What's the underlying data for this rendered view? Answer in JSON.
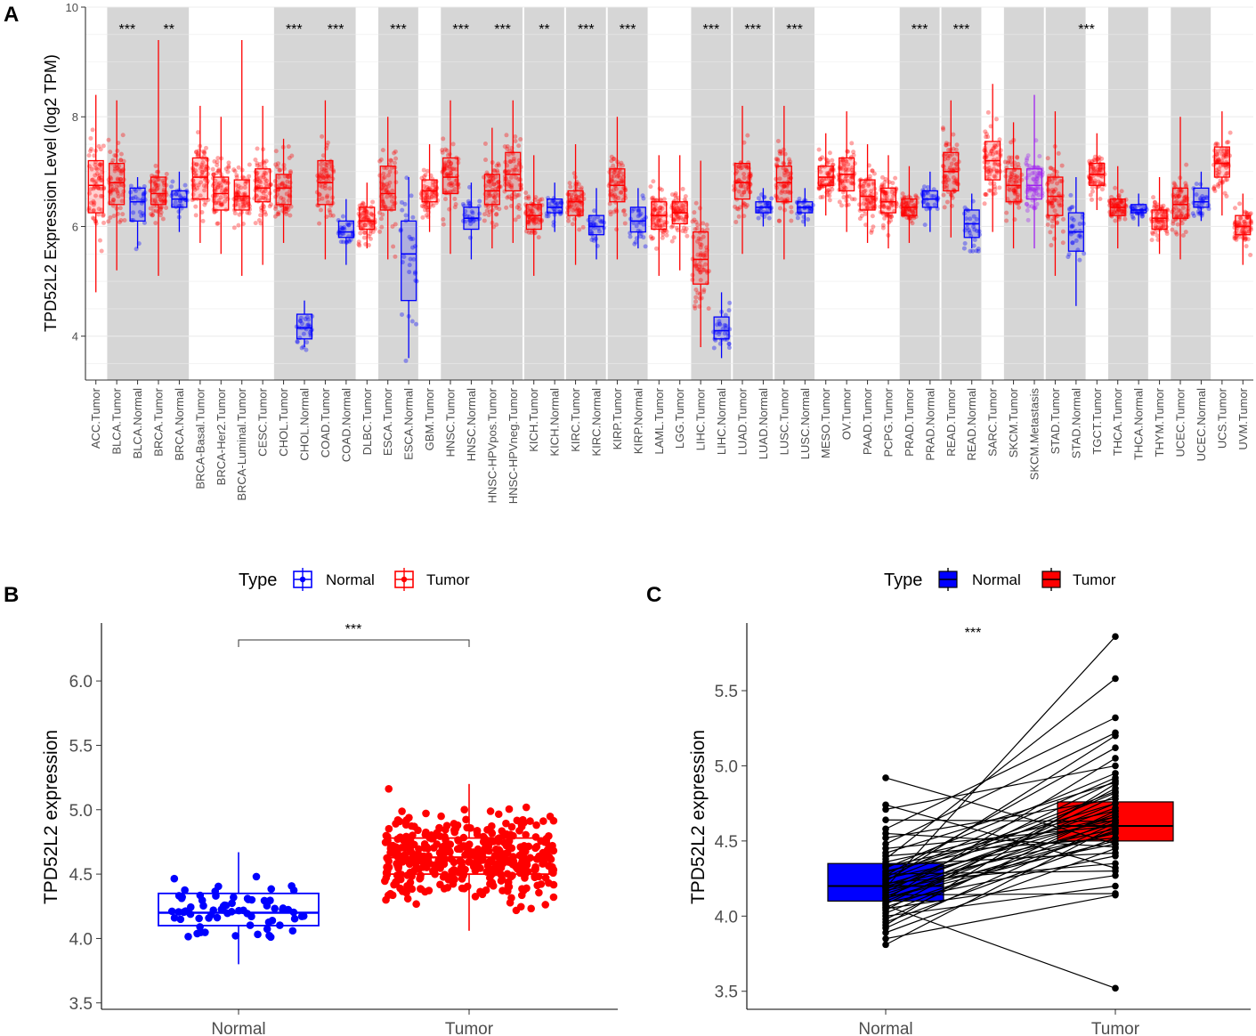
{
  "panels": {
    "a": {
      "letter": "A"
    },
    "b": {
      "letter": "B"
    },
    "c": {
      "letter": "C"
    }
  },
  "chart_data": [
    {
      "id": "A",
      "type": "boxplot",
      "ylabel": "TPD52L2 Expression Level (log2 TPM)",
      "ylim": [
        3.2,
        10
      ],
      "yticks": [
        4,
        6,
        8,
        10
      ],
      "colors": {
        "Tumor": "#ff0000",
        "Normal": "#0000ff",
        "Metastasis": "#a020f0"
      },
      "categories": [
        {
          "label": "ACC.Tumor",
          "type": "Tumor",
          "q1": 6.25,
          "med": 6.75,
          "q3": 7.2,
          "lo": 4.8,
          "hi": 8.4
        },
        {
          "label": "BLCA.Tumor",
          "type": "Tumor",
          "q1": 6.4,
          "med": 6.8,
          "q3": 7.15,
          "lo": 5.2,
          "hi": 8.3
        },
        {
          "label": "BLCA.Normal",
          "type": "Normal",
          "q1": 6.1,
          "med": 6.45,
          "q3": 6.7,
          "lo": 5.6,
          "hi": 6.9
        },
        {
          "label": "BRCA.Tumor",
          "type": "Tumor",
          "q1": 6.4,
          "med": 6.6,
          "q3": 6.9,
          "lo": 5.1,
          "hi": 9.4
        },
        {
          "label": "BRCA.Normal",
          "type": "Normal",
          "q1": 6.35,
          "med": 6.5,
          "q3": 6.65,
          "lo": 5.9,
          "hi": 7.0
        },
        {
          "label": "BRCA-Basal.Tumor",
          "type": "Tumor",
          "q1": 6.5,
          "med": 6.9,
          "q3": 7.25,
          "lo": 5.7,
          "hi": 8.2
        },
        {
          "label": "BRCA-Her2.Tumor",
          "type": "Tumor",
          "q1": 6.3,
          "med": 6.6,
          "q3": 6.9,
          "lo": 5.5,
          "hi": 8.0
        },
        {
          "label": "BRCA-Luminal.Tumor",
          "type": "Tumor",
          "q1": 6.3,
          "med": 6.55,
          "q3": 6.85,
          "lo": 5.1,
          "hi": 9.4
        },
        {
          "label": "CESC.Tumor",
          "type": "Tumor",
          "q1": 6.45,
          "med": 6.7,
          "q3": 7.05,
          "lo": 5.3,
          "hi": 8.2
        },
        {
          "label": "CHOL.Tumor",
          "type": "Tumor",
          "q1": 6.4,
          "med": 6.7,
          "q3": 6.95,
          "lo": 5.7,
          "hi": 7.6
        },
        {
          "label": "CHOL.Normal",
          "type": "Normal",
          "q1": 3.95,
          "med": 4.15,
          "q3": 4.4,
          "lo": 3.8,
          "hi": 4.65
        },
        {
          "label": "COAD.Tumor",
          "type": "Tumor",
          "q1": 6.4,
          "med": 6.8,
          "q3": 7.2,
          "lo": 5.4,
          "hi": 8.3
        },
        {
          "label": "COAD.Normal",
          "type": "Normal",
          "q1": 5.8,
          "med": 5.9,
          "q3": 6.1,
          "lo": 5.3,
          "hi": 6.5
        },
        {
          "label": "DLBC.Tumor",
          "type": "Tumor",
          "q1": 5.95,
          "med": 6.1,
          "q3": 6.35,
          "lo": 5.6,
          "hi": 6.8
        },
        {
          "label": "ESCA.Tumor",
          "type": "Tumor",
          "q1": 6.3,
          "med": 6.6,
          "q3": 7.1,
          "lo": 5.4,
          "hi": 8.0
        },
        {
          "label": "ESCA.Normal",
          "type": "Normal",
          "q1": 4.65,
          "med": 5.5,
          "q3": 6.1,
          "lo": 3.6,
          "hi": 6.9
        },
        {
          "label": "GBM.Tumor",
          "type": "Tumor",
          "q1": 6.45,
          "med": 6.65,
          "q3": 6.85,
          "lo": 5.9,
          "hi": 7.5
        },
        {
          "label": "HNSC.Tumor",
          "type": "Tumor",
          "q1": 6.6,
          "med": 6.9,
          "q3": 7.25,
          "lo": 5.5,
          "hi": 8.3
        },
        {
          "label": "HNSC.Normal",
          "type": "Normal",
          "q1": 5.95,
          "med": 6.15,
          "q3": 6.35,
          "lo": 5.4,
          "hi": 6.8
        },
        {
          "label": "HNSC-HPVpos.Tumor",
          "type": "Tumor",
          "q1": 6.4,
          "med": 6.65,
          "q3": 6.95,
          "lo": 5.6,
          "hi": 7.8
        },
        {
          "label": "HNSC-HPVneg.Tumor",
          "type": "Tumor",
          "q1": 6.65,
          "med": 6.95,
          "q3": 7.35,
          "lo": 5.7,
          "hi": 8.3
        },
        {
          "label": "KICH.Tumor",
          "type": "Tumor",
          "q1": 5.95,
          "med": 6.2,
          "q3": 6.4,
          "lo": 5.1,
          "hi": 7.3
        },
        {
          "label": "KICH.Normal",
          "type": "Normal",
          "q1": 6.25,
          "med": 6.35,
          "q3": 6.5,
          "lo": 5.9,
          "hi": 6.8
        },
        {
          "label": "KIRC.Tumor",
          "type": "Tumor",
          "q1": 6.2,
          "med": 6.45,
          "q3": 6.65,
          "lo": 5.3,
          "hi": 7.5
        },
        {
          "label": "KIRC.Normal",
          "type": "Normal",
          "q1": 5.85,
          "med": 6.0,
          "q3": 6.2,
          "lo": 5.4,
          "hi": 6.7
        },
        {
          "label": "KIRP.Tumor",
          "type": "Tumor",
          "q1": 6.45,
          "med": 6.75,
          "q3": 7.05,
          "lo": 5.4,
          "hi": 8.0
        },
        {
          "label": "KIRP.Normal",
          "type": "Normal",
          "q1": 5.9,
          "med": 6.1,
          "q3": 6.35,
          "lo": 5.6,
          "hi": 6.7
        },
        {
          "label": "LAML.Tumor",
          "type": "Tumor",
          "q1": 5.95,
          "med": 6.2,
          "q3": 6.45,
          "lo": 5.1,
          "hi": 7.3
        },
        {
          "label": "LGG.Tumor",
          "type": "Tumor",
          "q1": 6.05,
          "med": 6.25,
          "q3": 6.45,
          "lo": 5.2,
          "hi": 7.3
        },
        {
          "label": "LIHC.Tumor",
          "type": "Tumor",
          "q1": 4.95,
          "med": 5.4,
          "q3": 5.9,
          "lo": 3.8,
          "hi": 7.2
        },
        {
          "label": "LIHC.Normal",
          "type": "Normal",
          "q1": 3.95,
          "med": 4.1,
          "q3": 4.35,
          "lo": 3.6,
          "hi": 4.8
        },
        {
          "label": "LUAD.Tumor",
          "type": "Tumor",
          "q1": 6.5,
          "med": 6.8,
          "q3": 7.15,
          "lo": 5.5,
          "hi": 8.2
        },
        {
          "label": "LUAD.Normal",
          "type": "Normal",
          "q1": 6.25,
          "med": 6.35,
          "q3": 6.45,
          "lo": 6.0,
          "hi": 6.7
        },
        {
          "label": "LUSC.Tumor",
          "type": "Tumor",
          "q1": 6.45,
          "med": 6.8,
          "q3": 7.1,
          "lo": 5.4,
          "hi": 8.2
        },
        {
          "label": "LUSC.Normal",
          "type": "Normal",
          "q1": 6.25,
          "med": 6.35,
          "q3": 6.45,
          "lo": 6.0,
          "hi": 6.7
        },
        {
          "label": "MESO.Tumor",
          "type": "Tumor",
          "q1": 6.75,
          "med": 6.9,
          "q3": 7.1,
          "lo": 6.2,
          "hi": 7.7
        },
        {
          "label": "OV.Tumor",
          "type": "Tumor",
          "q1": 6.65,
          "med": 6.95,
          "q3": 7.25,
          "lo": 5.9,
          "hi": 8.1
        },
        {
          "label": "PAAD.Tumor",
          "type": "Tumor",
          "q1": 6.3,
          "med": 6.55,
          "q3": 6.85,
          "lo": 5.7,
          "hi": 7.5
        },
        {
          "label": "PCPG.Tumor",
          "type": "Tumor",
          "q1": 6.25,
          "med": 6.45,
          "q3": 6.7,
          "lo": 5.6,
          "hi": 7.3
        },
        {
          "label": "PRAD.Tumor",
          "type": "Tumor",
          "q1": 6.2,
          "med": 6.35,
          "q3": 6.5,
          "lo": 5.7,
          "hi": 7.1
        },
        {
          "label": "PRAD.Normal",
          "type": "Normal",
          "q1": 6.35,
          "med": 6.5,
          "q3": 6.65,
          "lo": 5.9,
          "hi": 7.0
        },
        {
          "label": "READ.Tumor",
          "type": "Tumor",
          "q1": 6.65,
          "med": 7.0,
          "q3": 7.35,
          "lo": 5.8,
          "hi": 8.3
        },
        {
          "label": "READ.Normal",
          "type": "Normal",
          "q1": 5.8,
          "med": 6.05,
          "q3": 6.3,
          "lo": 5.6,
          "hi": 6.6
        },
        {
          "label": "SARC.Tumor",
          "type": "Tumor",
          "q1": 6.85,
          "med": 7.2,
          "q3": 7.55,
          "lo": 5.9,
          "hi": 8.6
        },
        {
          "label": "SKCM.Tumor",
          "type": "Tumor",
          "q1": 6.45,
          "med": 6.75,
          "q3": 7.05,
          "lo": 5.6,
          "hi": 7.9
        },
        {
          "label": "SKCM.Metastasis",
          "type": "Metastasis",
          "q1": 6.5,
          "med": 6.75,
          "q3": 7.05,
          "lo": 5.6,
          "hi": 8.4
        },
        {
          "label": "STAD.Tumor",
          "type": "Tumor",
          "q1": 6.2,
          "med": 6.55,
          "q3": 6.9,
          "lo": 5.1,
          "hi": 8.1
        },
        {
          "label": "STAD.Normal",
          "type": "Normal",
          "q1": 5.55,
          "med": 5.9,
          "q3": 6.25,
          "lo": 4.55,
          "hi": 6.9
        },
        {
          "label": "TGCT.Tumor",
          "type": "Tumor",
          "q1": 6.75,
          "med": 6.95,
          "q3": 7.15,
          "lo": 6.3,
          "hi": 7.7
        },
        {
          "label": "THCA.Tumor",
          "type": "Tumor",
          "q1": 6.2,
          "med": 6.35,
          "q3": 6.5,
          "lo": 5.6,
          "hi": 7.1
        },
        {
          "label": "THCA.Normal",
          "type": "Normal",
          "q1": 6.25,
          "med": 6.3,
          "q3": 6.4,
          "lo": 6.0,
          "hi": 6.6
        },
        {
          "label": "THYM.Tumor",
          "type": "Tumor",
          "q1": 5.95,
          "med": 6.15,
          "q3": 6.3,
          "lo": 5.5,
          "hi": 6.9
        },
        {
          "label": "UCEC.Tumor",
          "type": "Tumor",
          "q1": 6.15,
          "med": 6.4,
          "q3": 6.7,
          "lo": 5.4,
          "hi": 8.0
        },
        {
          "label": "UCEC.Normal",
          "type": "Normal",
          "q1": 6.35,
          "med": 6.45,
          "q3": 6.7,
          "lo": 6.1,
          "hi": 7.0
        },
        {
          "label": "UCS.Tumor",
          "type": "Tumor",
          "q1": 6.9,
          "med": 7.15,
          "q3": 7.45,
          "lo": 6.2,
          "hi": 8.1
        },
        {
          "label": "UVM.Tumor",
          "type": "Tumor",
          "q1": 5.85,
          "med": 6.0,
          "q3": 6.2,
          "lo": 5.3,
          "hi": 6.6
        }
      ],
      "shaded_groups": [
        [
          1,
          4
        ],
        [
          9,
          12
        ],
        [
          14,
          15
        ],
        [
          17,
          20
        ],
        [
          21,
          22
        ],
        [
          23,
          24
        ],
        [
          25,
          26
        ],
        [
          29,
          30
        ],
        [
          31,
          32
        ],
        [
          33,
          34
        ],
        [
          39,
          40
        ],
        [
          41,
          42
        ],
        [
          44,
          45
        ],
        [
          46,
          47
        ],
        [
          49,
          50
        ],
        [
          52,
          53
        ]
      ],
      "significance": [
        {
          "pos": 1.5,
          "text": "***"
        },
        {
          "pos": 3.5,
          "text": "**"
        },
        {
          "pos": 9.5,
          "text": "***"
        },
        {
          "pos": 11.5,
          "text": "***"
        },
        {
          "pos": 14.5,
          "text": "***"
        },
        {
          "pos": 17.5,
          "text": "***"
        },
        {
          "pos": 19.5,
          "text": "***"
        },
        {
          "pos": 21.5,
          "text": "**"
        },
        {
          "pos": 23.5,
          "text": "***"
        },
        {
          "pos": 25.5,
          "text": "***"
        },
        {
          "pos": 29.5,
          "text": "***"
        },
        {
          "pos": 31.5,
          "text": "***"
        },
        {
          "pos": 33.5,
          "text": "***"
        },
        {
          "pos": 39.5,
          "text": "***"
        },
        {
          "pos": 41.5,
          "text": "***"
        },
        {
          "pos": 47.5,
          "text": "***"
        }
      ]
    },
    {
      "id": "B",
      "type": "boxplot",
      "title": "",
      "ylabel": "TPD52L2 expression",
      "ylim": [
        3.45,
        6.45
      ],
      "yticks": [
        3.5,
        4.0,
        4.5,
        5.0,
        5.5,
        6.0
      ],
      "ytick_labels": [
        "3.5",
        "4.0",
        "4.5",
        "5.0",
        "5.5",
        "6.0"
      ],
      "legend": {
        "title": "Type",
        "entries": [
          "Normal",
          "Tumor"
        ],
        "colors": [
          "#0000ff",
          "#ff0000"
        ]
      },
      "groups": [
        {
          "label": "Normal",
          "q1": 4.1,
          "med": 4.2,
          "q3": 4.35,
          "lo": 3.8,
          "hi": 4.67,
          "n": 72,
          "spread": 0.15
        },
        {
          "label": "Tumor",
          "q1": 4.5,
          "med": 4.63,
          "q3": 4.78,
          "lo": 4.06,
          "hi": 5.2,
          "n": 420,
          "spread": 0.22
        }
      ],
      "significance": "***"
    },
    {
      "id": "C",
      "type": "paired_boxplot",
      "ylabel": "TPD52L2 expression",
      "ylim": [
        3.38,
        5.95
      ],
      "yticks": [
        3.5,
        4.0,
        4.5,
        5.0,
        5.5
      ],
      "ytick_labels": [
        "3.5",
        "4.0",
        "4.5",
        "5.0",
        "5.5"
      ],
      "legend": {
        "title": "Type",
        "entries": [
          "Normal",
          "Tumor"
        ],
        "colors": [
          "#0000ff",
          "#ff0000"
        ]
      },
      "groups": [
        {
          "label": "Normal",
          "q1": 4.1,
          "med": 4.2,
          "q3": 4.35
        },
        {
          "label": "Tumor",
          "q1": 4.5,
          "med": 4.6,
          "q3": 4.76
        }
      ],
      "pairs": [
        [
          4.92,
          4.48
        ],
        [
          4.74,
          4.32
        ],
        [
          4.71,
          5.0
        ],
        [
          4.64,
          4.63
        ],
        [
          4.58,
          5.32
        ],
        [
          4.55,
          4.46
        ],
        [
          4.52,
          4.78
        ],
        [
          4.48,
          5.22
        ],
        [
          4.45,
          4.6
        ],
        [
          4.42,
          4.89
        ],
        [
          4.4,
          4.52
        ],
        [
          4.38,
          5.58
        ],
        [
          4.36,
          4.7
        ],
        [
          4.34,
          4.42
        ],
        [
          4.32,
          4.95
        ],
        [
          4.3,
          4.64
        ],
        [
          4.28,
          4.3
        ],
        [
          4.27,
          5.12
        ],
        [
          4.25,
          4.58
        ],
        [
          4.24,
          4.83
        ],
        [
          4.22,
          4.35
        ],
        [
          4.21,
          4.66
        ],
        [
          4.2,
          4.55
        ],
        [
          4.19,
          5.86
        ],
        [
          4.18,
          4.72
        ],
        [
          4.17,
          4.48
        ],
        [
          4.16,
          4.9
        ],
        [
          4.15,
          4.62
        ],
        [
          4.14,
          4.15
        ],
        [
          4.13,
          4.75
        ],
        [
          4.12,
          4.5
        ],
        [
          4.11,
          5.05
        ],
        [
          4.1,
          4.68
        ],
        [
          4.09,
          4.4
        ],
        [
          4.08,
          4.8
        ],
        [
          4.07,
          3.52
        ],
        [
          4.06,
          4.57
        ],
        [
          4.05,
          4.27
        ],
        [
          4.04,
          4.85
        ],
        [
          4.02,
          4.64
        ],
        [
          4.0,
          4.2
        ],
        [
          3.98,
          4.7
        ],
        [
          3.96,
          4.52
        ],
        [
          3.94,
          4.88
        ],
        [
          3.92,
          4.62
        ],
        [
          3.89,
          4.45
        ],
        [
          3.85,
          4.14
        ],
        [
          3.81,
          4.6
        ],
        [
          4.26,
          4.92
        ],
        [
          4.33,
          4.66
        ],
        [
          4.23,
          5.2
        ],
        [
          4.29,
          4.75
        ],
        [
          4.12,
          4.56
        ],
        [
          4.19,
          4.82
        ]
      ],
      "significance": "***"
    }
  ]
}
